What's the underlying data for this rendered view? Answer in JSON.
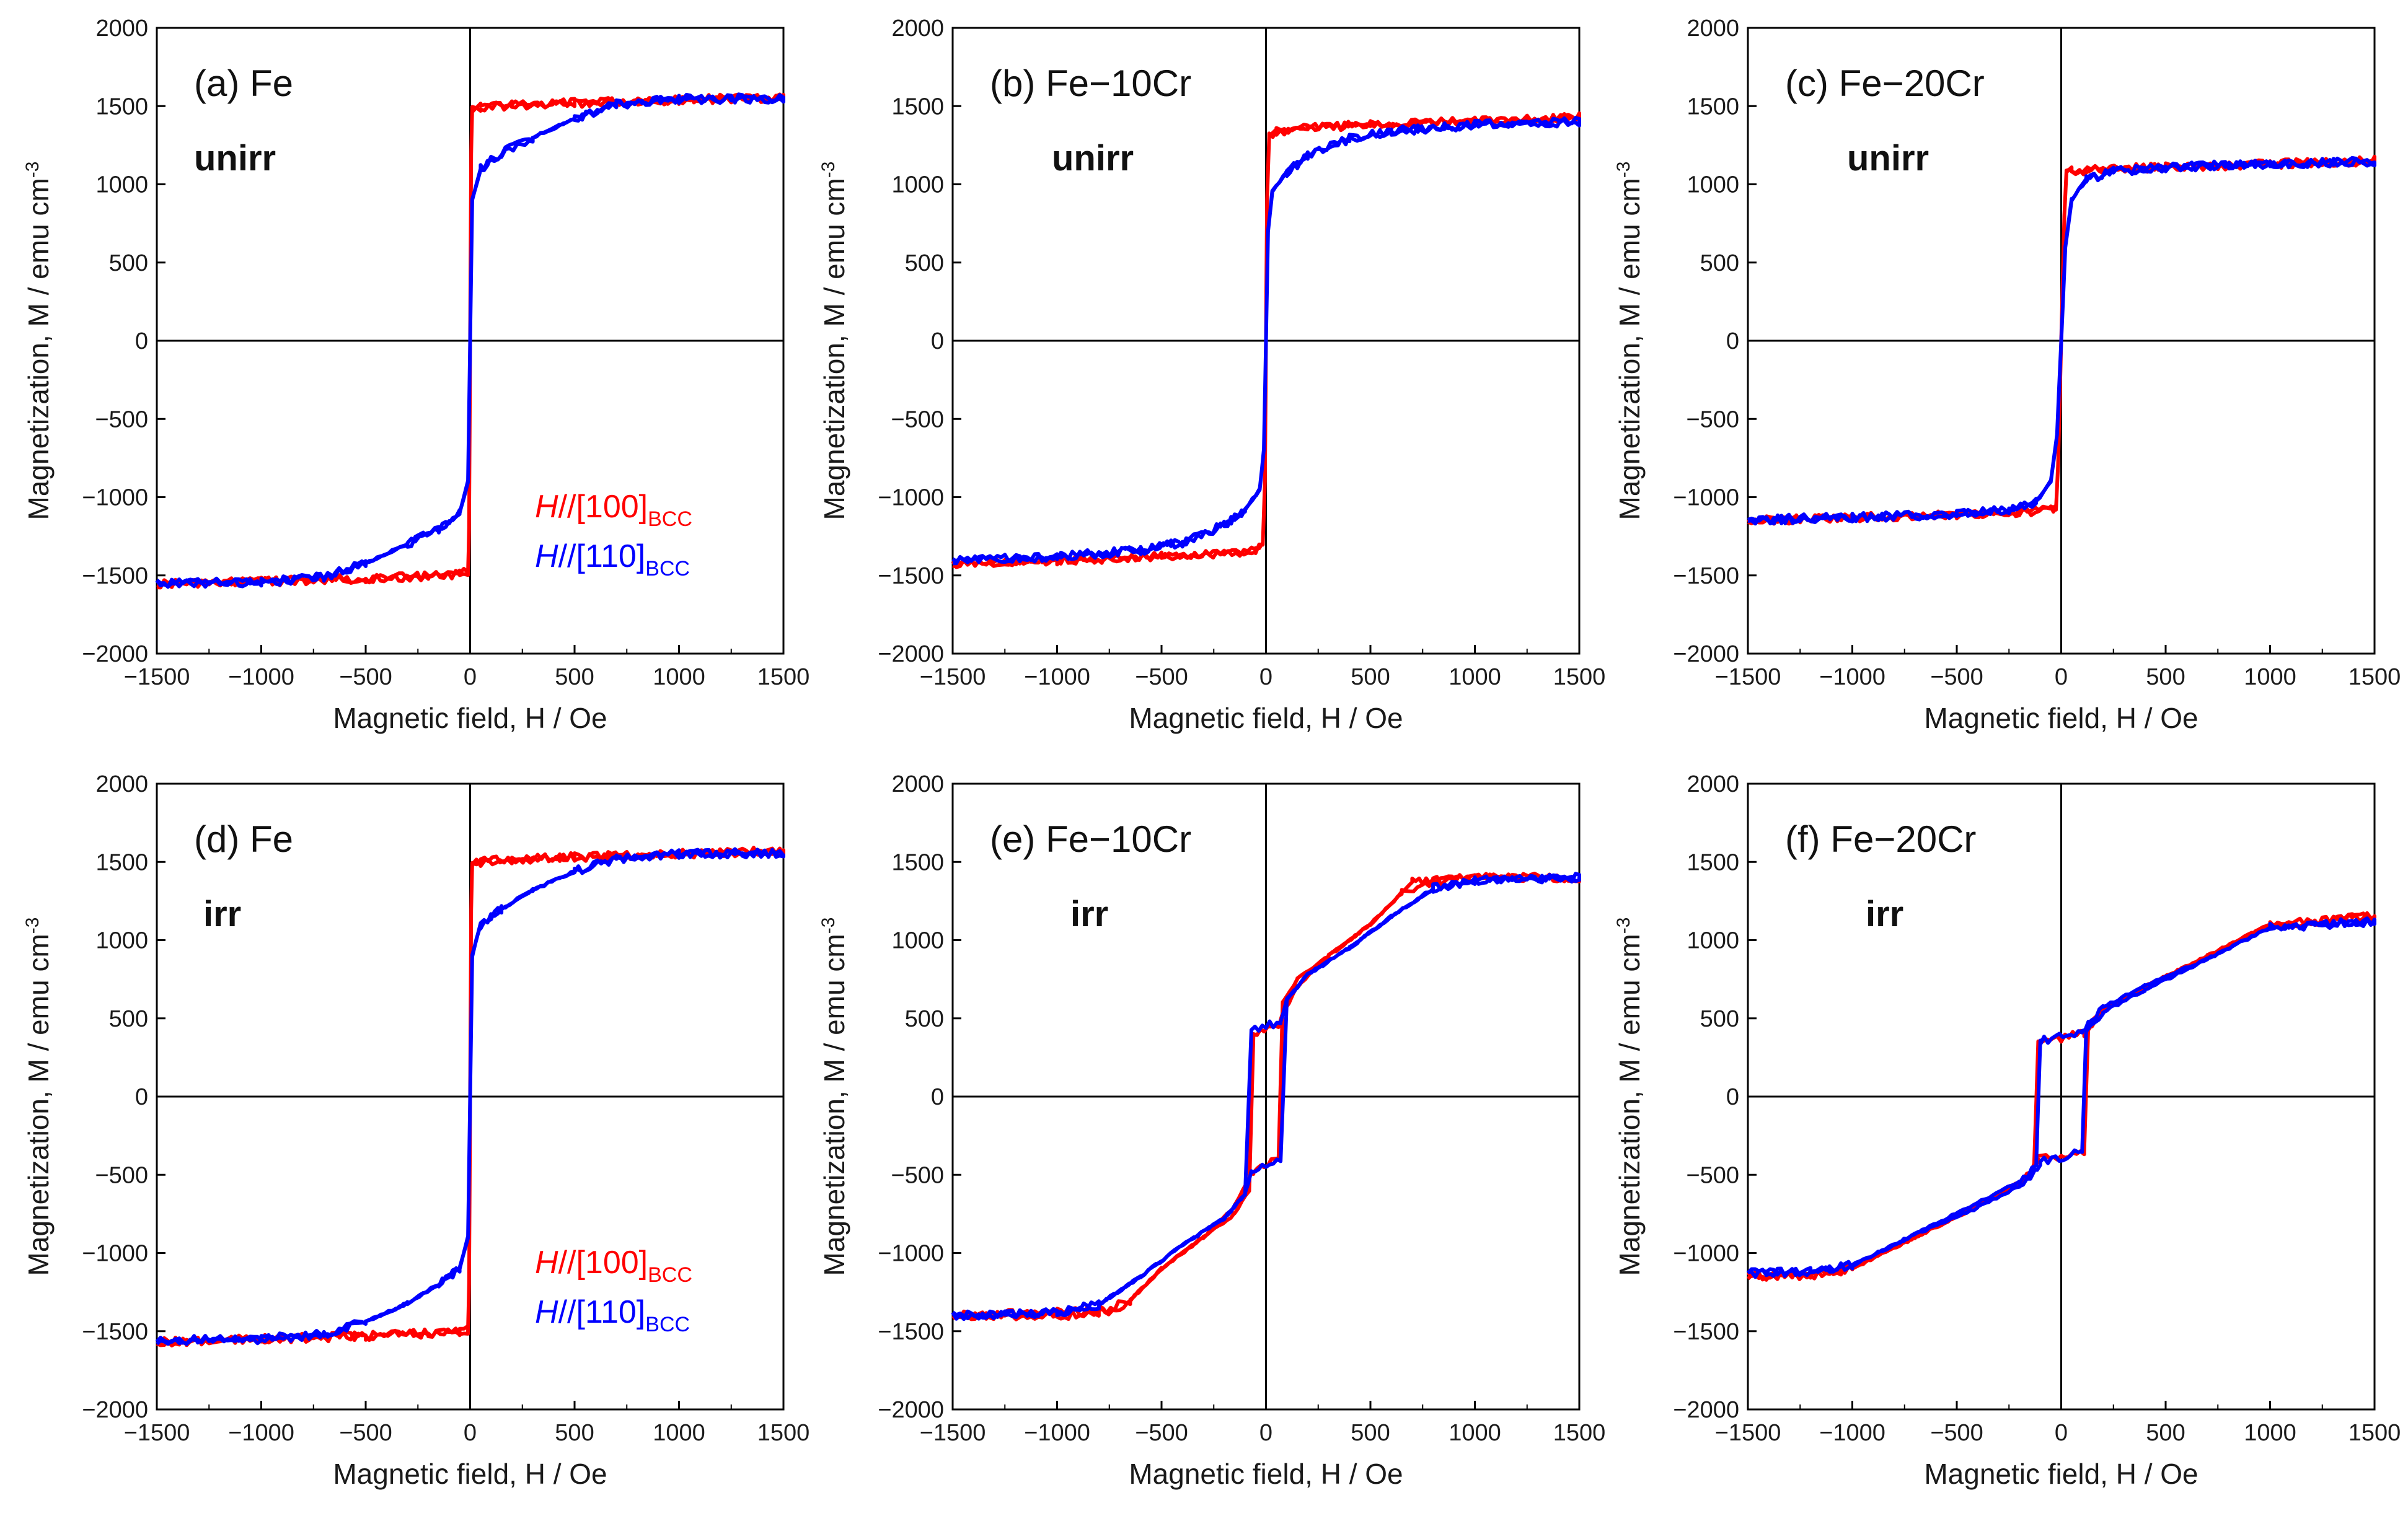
{
  "figure_title": "",
  "chart_data": [
    {
      "type": "line",
      "id": "a",
      "title": "",
      "panel_label": "(a) Fe",
      "condition": "unirr",
      "xlabel": "Magnetic field, H / Oe",
      "ylabel": "Magnetization, M / emu cm-3",
      "xlim": [
        -1500,
        1500
      ],
      "ylim": [
        -2000,
        2000
      ],
      "x_ticks": [
        "−1500",
        "−1000",
        "−500",
        "0",
        "500",
        "1000",
        "1500"
      ],
      "y_ticks": [
        "2000",
        "1500",
        "1000",
        "500",
        "0",
        "−500",
        "−1000",
        "−1500",
        "−2000"
      ],
      "legend": [
        {
          "label": "H//[100]",
          "subscript": "BCC",
          "color": "#ff0000"
        },
        {
          "label": "H//[110]",
          "subscript": "BCC",
          "color": "#0000ff"
        }
      ],
      "series": [
        {
          "name": "H//[100]BCC",
          "color": "#ff0000",
          "x": [
            -1500,
            -1000,
            -500,
            -200,
            -50,
            -10,
            -5,
            0,
            5,
            10,
            50,
            200,
            500,
            1000,
            1500,
            1000,
            500,
            200,
            50,
            10,
            5,
            0,
            -5,
            -10,
            -50,
            -200,
            -500,
            -1000,
            -1500
          ],
          "y": [
            -1555,
            -1540,
            -1520,
            -1505,
            -1490,
            -1480,
            -1200,
            0,
            1200,
            1480,
            1490,
            1505,
            1520,
            1540,
            1555,
            1540,
            1520,
            1505,
            1490,
            1480,
            1200,
            0,
            -1200,
            -1480,
            -1490,
            -1505,
            -1520,
            -1540,
            -1555
          ]
        },
        {
          "name": "H//[110]BCC",
          "color": "#0000ff",
          "x": [
            -1500,
            -1000,
            -700,
            -500,
            -300,
            -150,
            -50,
            -10,
            0,
            10,
            50,
            150,
            300,
            500,
            700,
            1000,
            1500,
            1000,
            700,
            500,
            300,
            150,
            50,
            10,
            0,
            -10,
            -50,
            -150,
            -300,
            -500,
            -700,
            -1000,
            -1500
          ],
          "y": [
            -1550,
            -1545,
            -1510,
            -1420,
            -1300,
            -1200,
            -1100,
            -900,
            0,
            900,
            1100,
            1200,
            1300,
            1420,
            1510,
            1545,
            1550,
            1545,
            1510,
            1420,
            1300,
            1200,
            1100,
            900,
            0,
            -900,
            -1100,
            -1200,
            -1300,
            -1420,
            -1510,
            -1545,
            -1550
          ]
        }
      ]
    },
    {
      "type": "line",
      "id": "b",
      "title": "",
      "panel_label": "(b) Fe−10Cr",
      "condition": "unirr",
      "xlabel": "Magnetic field, H / Oe",
      "ylabel": "Magnetization, M / emu cm-3",
      "xlim": [
        -1500,
        1500
      ],
      "ylim": [
        -2000,
        2000
      ],
      "x_ticks": [
        "−1500",
        "−1000",
        "−500",
        "0",
        "500",
        "1000",
        "1500"
      ],
      "y_ticks": [
        "2000",
        "1500",
        "1000",
        "500",
        "0",
        "−500",
        "−1000",
        "−1500",
        "−2000"
      ],
      "legend": [],
      "series": [
        {
          "name": "H//[100]BCC",
          "color": "#ff0000",
          "x": [
            -1500,
            -1000,
            -500,
            -200,
            -50,
            -15,
            -5,
            0,
            5,
            15,
            50,
            200,
            500,
            1000,
            1500,
            1000,
            500,
            200,
            50,
            15,
            5,
            0,
            -5,
            -15,
            -50,
            -200,
            -500,
            -1000,
            -1500
          ],
          "y": [
            -1430,
            -1405,
            -1380,
            -1360,
            -1340,
            -1300,
            -900,
            0,
            900,
            1300,
            1340,
            1360,
            1380,
            1405,
            1430,
            1405,
            1380,
            1360,
            1340,
            1300,
            900,
            0,
            -900,
            -1300,
            -1340,
            -1360,
            -1380,
            -1405,
            -1430
          ]
        },
        {
          "name": "H//[110]BCC",
          "color": "#0000ff",
          "x": [
            -1500,
            -1000,
            -600,
            -400,
            -200,
            -100,
            -30,
            -10,
            0,
            10,
            30,
            100,
            200,
            400,
            600,
            1000,
            1500,
            1000,
            600,
            400,
            200,
            100,
            30,
            10,
            0,
            -10,
            -30,
            -100,
            -200,
            -400,
            -600,
            -1000,
            -1500
          ],
          "y": [
            -1400,
            -1380,
            -1340,
            -1290,
            -1180,
            -1080,
            -950,
            -700,
            0,
            700,
            950,
            1080,
            1180,
            1290,
            1340,
            1380,
            1400,
            1380,
            1340,
            1290,
            1180,
            1080,
            950,
            700,
            0,
            -700,
            -950,
            -1080,
            -1180,
            -1290,
            -1340,
            -1380,
            -1400
          ]
        }
      ]
    },
    {
      "type": "line",
      "id": "c",
      "title": "",
      "panel_label": "(c) Fe−20Cr",
      "condition": "unirr",
      "xlabel": "Magnetic field, H / Oe",
      "ylabel": "Magnetization, M / emu cm-3",
      "xlim": [
        -1500,
        1500
      ],
      "ylim": [
        -2000,
        2000
      ],
      "x_ticks": [
        "−1500",
        "−1000",
        "−500",
        "0",
        "500",
        "1000",
        "1500"
      ],
      "y_ticks": [
        "2000",
        "1500",
        "1000",
        "500",
        "0",
        "−500",
        "−1000",
        "−1500",
        "−2000"
      ],
      "legend": [],
      "series": [
        {
          "name": "H//[100]BCC",
          "color": "#ff0000",
          "x": [
            -1500,
            -1000,
            -500,
            -200,
            -50,
            -25,
            -15,
            0,
            15,
            25,
            50,
            200,
            500,
            1000,
            1500,
            1000,
            500,
            200,
            50,
            25,
            15,
            0,
            -15,
            -25,
            -50,
            -200,
            -500,
            -1000,
            -1500
          ],
          "y": [
            -1150,
            -1130,
            -1110,
            -1095,
            -1085,
            -1075,
            -800,
            0,
            800,
            1075,
            1085,
            1095,
            1110,
            1130,
            1150,
            1130,
            1110,
            1095,
            1085,
            1075,
            800,
            0,
            -800,
            -1075,
            -1085,
            -1095,
            -1110,
            -1130,
            -1150
          ]
        },
        {
          "name": "H//[110]BCC",
          "color": "#0000ff",
          "x": [
            -1500,
            -1000,
            -500,
            -250,
            -120,
            -50,
            -20,
            0,
            20,
            50,
            120,
            250,
            500,
            1000,
            1500,
            1000,
            500,
            250,
            120,
            50,
            20,
            0,
            -20,
            -50,
            -120,
            -250,
            -500,
            -1000,
            -1500
          ],
          "y": [
            -1145,
            -1130,
            -1110,
            -1080,
            -1030,
            -900,
            -600,
            0,
            600,
            900,
            1030,
            1080,
            1110,
            1130,
            1145,
            1130,
            1110,
            1080,
            1030,
            900,
            600,
            0,
            -600,
            -900,
            -1030,
            -1080,
            -1110,
            -1130,
            -1145
          ]
        }
      ]
    },
    {
      "type": "line",
      "id": "d",
      "title": "",
      "panel_label": "(d) Fe",
      "condition": "irr",
      "xlabel": "Magnetic field, H / Oe",
      "ylabel": "Magnetization, M / emu cm-3",
      "xlim": [
        -1500,
        1500
      ],
      "ylim": [
        -2000,
        2000
      ],
      "x_ticks": [
        "−1500",
        "−1000",
        "−500",
        "0",
        "500",
        "1000",
        "1500"
      ],
      "y_ticks": [
        "2000",
        "1500",
        "1000",
        "500",
        "0",
        "−500",
        "−1000",
        "−1500",
        "−2000"
      ],
      "legend": [
        {
          "label": "H//[100]",
          "subscript": "BCC",
          "color": "#ff0000"
        },
        {
          "label": "H//[110]",
          "subscript": "BCC",
          "color": "#0000ff"
        }
      ],
      "series": [
        {
          "name": "H//[100]BCC",
          "color": "#ff0000",
          "x": [
            -1500,
            -1000,
            -500,
            -200,
            -50,
            -10,
            -5,
            0,
            5,
            10,
            50,
            200,
            500,
            1000,
            1500,
            1000,
            500,
            200,
            50,
            10,
            5,
            0,
            -5,
            -10,
            -50,
            -200,
            -500,
            -1000,
            -1500
          ],
          "y": [
            -1570,
            -1550,
            -1530,
            -1515,
            -1500,
            -1490,
            -1200,
            0,
            1200,
            1490,
            1500,
            1515,
            1530,
            1550,
            1570,
            1550,
            1530,
            1515,
            1500,
            1490,
            1200,
            0,
            -1200,
            -1490,
            -1500,
            -1515,
            -1530,
            -1550,
            -1570
          ]
        },
        {
          "name": "H//[110]BCC",
          "color": "#0000ff",
          "x": [
            -1500,
            -1000,
            -700,
            -500,
            -300,
            -150,
            -50,
            -10,
            0,
            10,
            50,
            150,
            300,
            500,
            700,
            1000,
            1500,
            1000,
            700,
            500,
            300,
            150,
            50,
            10,
            0,
            -10,
            -50,
            -150,
            -300,
            -500,
            -700,
            -1000,
            -1500
          ],
          "y": [
            -1560,
            -1550,
            -1520,
            -1440,
            -1320,
            -1200,
            -1100,
            -900,
            0,
            900,
            1100,
            1200,
            1320,
            1440,
            1520,
            1550,
            1560,
            1550,
            1520,
            1440,
            1320,
            1200,
            1100,
            900,
            0,
            -900,
            -1100,
            -1200,
            -1320,
            -1440,
            -1520,
            -1550,
            -1560
          ]
        }
      ]
    },
    {
      "type": "line",
      "id": "e",
      "title": "",
      "panel_label": "(e) Fe−10Cr",
      "condition": "irr",
      "xlabel": "Magnetic field, H / Oe",
      "ylabel": "Magnetization, M / emu cm-3",
      "xlim": [
        -1500,
        1500
      ],
      "ylim": [
        -2000,
        2000
      ],
      "x_ticks": [
        "−1500",
        "−1000",
        "−500",
        "0",
        "500",
        "1000",
        "1500"
      ],
      "y_ticks": [
        "2000",
        "1500",
        "1000",
        "500",
        "0",
        "−500",
        "−1000",
        "−1500",
        "−2000"
      ],
      "legend": [],
      "series": [
        {
          "name": "H//[100]BCC",
          "color": "#ff0000",
          "x": [
            -1500,
            -1000,
            -700,
            -500,
            -300,
            -150,
            -80,
            -60,
            60,
            90,
            150,
            300,
            500,
            650,
            800,
            1000,
            1500,
            1000,
            800,
            700,
            500,
            300,
            150,
            80,
            60,
            -60,
            -90,
            -150,
            -300,
            -500,
            -650,
            -800,
            -1000,
            -1500
          ],
          "y": [
            -1400,
            -1380,
            -1370,
            -1100,
            -900,
            -750,
            -600,
            400,
            470,
            550,
            700,
            900,
            1100,
            1300,
            1380,
            1400,
            1400,
            1400,
            1380,
            1370,
            1100,
            900,
            750,
            600,
            -400,
            -470,
            -550,
            -700,
            -900,
            -1100,
            -1300,
            -1380,
            -1400,
            -1400
          ]
        },
        {
          "name": "H//[110]BCC",
          "color": "#0000ff",
          "x": [
            -1500,
            -1000,
            -800,
            -600,
            -400,
            -200,
            -100,
            -70,
            70,
            100,
            200,
            400,
            600,
            800,
            1000,
            1500,
            1000,
            800,
            600,
            400,
            200,
            100,
            70,
            -70,
            -100,
            -200,
            -400,
            -600,
            -800,
            -1000,
            -1500
          ],
          "y": [
            -1400,
            -1380,
            -1330,
            -1150,
            -950,
            -780,
            -620,
            420,
            480,
            620,
            780,
            950,
            1150,
            1330,
            1380,
            1400,
            1380,
            1330,
            1150,
            950,
            780,
            620,
            -420,
            -480,
            -620,
            -780,
            -950,
            -1150,
            -1330,
            -1380,
            -1400
          ]
        }
      ]
    },
    {
      "type": "line",
      "id": "f",
      "title": "",
      "panel_label": "(f) Fe−20Cr",
      "condition": "irr",
      "xlabel": "Magnetic field, H / Oe",
      "ylabel": "Magnetization, M / emu cm-3",
      "xlim": [
        -1500,
        1500
      ],
      "ylim": [
        -2000,
        2000
      ],
      "x_ticks": [
        "−1500",
        "−1000",
        "−500",
        "0",
        "500",
        "1000",
        "1500"
      ],
      "y_ticks": [
        "2000",
        "1500",
        "1000",
        "500",
        "0",
        "−500",
        "−1000",
        "−1500",
        "−2000"
      ],
      "legend": [],
      "series": [
        {
          "name": "H//[100]BCC",
          "color": "#ff0000",
          "x": [
            -1500,
            -1200,
            -1000,
            -700,
            -400,
            -200,
            -130,
            -110,
            110,
            140,
            200,
            400,
            700,
            1000,
            1500,
            1000,
            700,
            400,
            200,
            130,
            110,
            -110,
            -140,
            -200,
            -400,
            -700,
            -1000,
            -1200,
            -1500
          ],
          "y": [
            -1150,
            -1140,
            -1100,
            -900,
            -700,
            -550,
            -450,
            350,
            400,
            470,
            560,
            700,
            900,
            1100,
            1150,
            1100,
            900,
            700,
            550,
            450,
            -350,
            -400,
            -470,
            -560,
            -700,
            -900,
            -1100,
            -1140,
            -1150
          ]
        },
        {
          "name": "H//[110]BCC",
          "color": "#0000ff",
          "x": [
            -1500,
            -1200,
            -1000,
            -700,
            -400,
            -200,
            -120,
            -100,
            100,
            130,
            200,
            400,
            700,
            1000,
            1500,
            1000,
            700,
            400,
            200,
            120,
            100,
            -100,
            -130,
            -200,
            -400,
            -700,
            -1000,
            -1200,
            -1500
          ],
          "y": [
            -1130,
            -1120,
            -1080,
            -880,
            -680,
            -540,
            -440,
            360,
            410,
            480,
            570,
            710,
            880,
            1080,
            1120,
            1080,
            880,
            680,
            540,
            440,
            -360,
            -410,
            -480,
            -570,
            -710,
            -880,
            -1080,
            -1120,
            -1130
          ]
        }
      ]
    }
  ]
}
